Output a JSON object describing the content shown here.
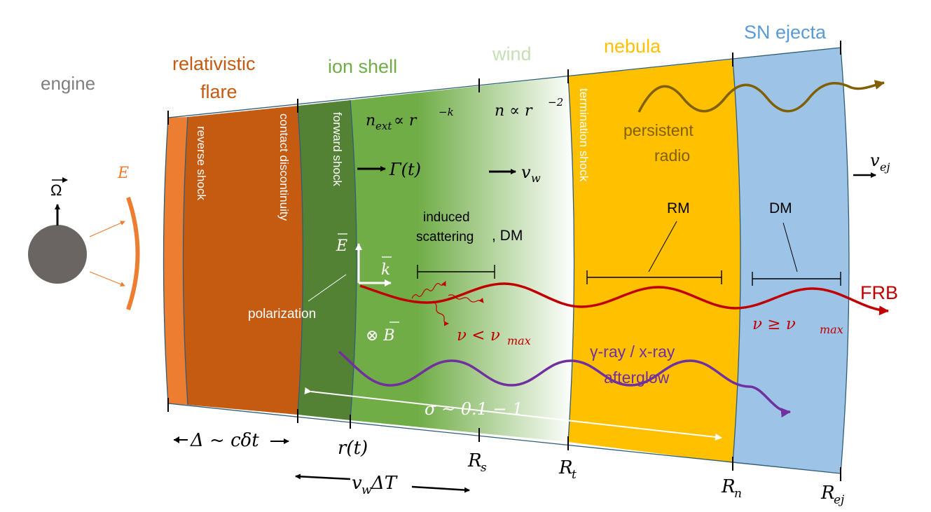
{
  "regions": {
    "engine": "engine",
    "relativistic_flare_line1": "relativistic",
    "relativistic_flare_line2": "flare",
    "ion_shell": "ion shell",
    "wind": "wind",
    "nebula": "nebula",
    "sn_ejecta": "SN ejecta"
  },
  "boundaries": {
    "reverse_shock": "reverse shock",
    "contact_discontinuity": "contact discontinuity",
    "forward_shock": "forward shock",
    "termination_shock": "termination shock"
  },
  "symbols": {
    "omega": "Ω",
    "energy": "E",
    "n_ext": "n",
    "n_ext_sub": "ext",
    "propto_r": "∝ r",
    "minus_k": "−k",
    "n_wind": "n ∝ r",
    "minus_2": "−2",
    "gamma_t": "Γ(t)",
    "v_w": "v",
    "w_sub": "w",
    "v_ej": "v",
    "ej_sub": "ej",
    "e_field": "E",
    "k_vector": "k",
    "b_field": "⊗ B"
  },
  "labels": {
    "persistent_radio_line1": "persistent",
    "persistent_radio_line2": "radio",
    "rm_nebula": "RM",
    "dm_ejecta": "DM",
    "induced_line1": "induced",
    "induced_line2": "scattering",
    "dm_comma": ", DM",
    "polarization": "polarization",
    "frb": "FRB",
    "nu_less": "ν < ν",
    "nu_ge": "ν  ≥  ν",
    "max_sub": "max",
    "gamma_xray_line1": "γ-ray / x-ray",
    "gamma_xray_line2": "afterglow",
    "sigma": "σ ~ 0.1 − 1"
  },
  "axis": {
    "delta": "Δ ~ cδt",
    "r_t": "r(t)",
    "vw_dt": "v",
    "vw_sub": "w",
    "vw_rest": "ΔT",
    "R": "R",
    "s_sub": "s",
    "t_sub": "t",
    "n_sub": "n",
    "ej_sub": "ej"
  },
  "colors": {
    "engine_label": "#7f7f7f",
    "engine_ball": "#6a6463",
    "flare_edge": "#ed7d31",
    "flare": "#c55a11",
    "ion_shell": "#548235",
    "shocked_green": "#70ad47",
    "wind_label": "#c5e0b4",
    "nebula": "#ffc000",
    "ejecta": "#9dc3e6",
    "sn_label": "#5b9bd5",
    "frb": "#c00000",
    "radio": "#806000",
    "afterglow": "#7030a0"
  }
}
